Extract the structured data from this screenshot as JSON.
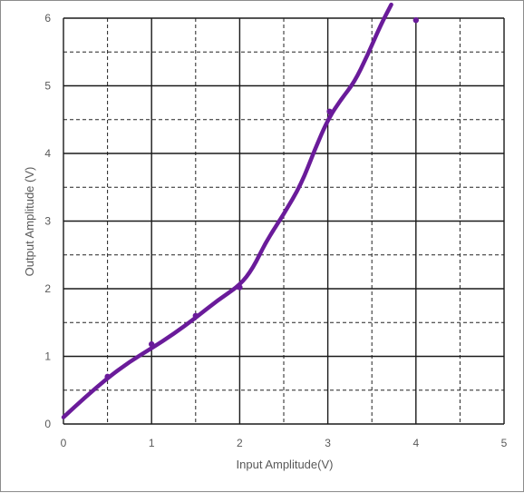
{
  "chart_data": {
    "type": "line",
    "title": "",
    "xlabel": "Input Amplitude(V)",
    "ylabel": "Output Amplitude (V)",
    "xlim": [
      0,
      5
    ],
    "ylim": [
      0,
      6
    ],
    "xticks": [
      "0",
      "1",
      "2",
      "3",
      "4",
      "5"
    ],
    "yticks": [
      "0",
      "1",
      "2",
      "3",
      "4",
      "5",
      "6"
    ],
    "major_grid": "solid",
    "minor_grid": "dashed",
    "line_color": "#6a1b9a",
    "series": [
      {
        "name": "",
        "x": [
          0.0,
          0.25,
          0.5,
          0.75,
          1.0,
          1.25,
          1.5,
          1.75,
          2.0,
          2.15,
          2.3,
          2.5,
          2.7,
          2.85,
          3.0,
          3.15,
          3.3,
          3.45,
          3.6,
          3.72
        ],
        "y": [
          0.1,
          0.4,
          0.68,
          0.92,
          1.12,
          1.33,
          1.57,
          1.83,
          2.05,
          2.3,
          2.7,
          3.1,
          3.55,
          4.05,
          4.5,
          4.8,
          5.05,
          5.45,
          5.9,
          6.2
        ]
      }
    ],
    "markers": [
      {
        "x": 0.5,
        "y": 0.7
      },
      {
        "x": 1.0,
        "y": 1.18
      },
      {
        "x": 1.5,
        "y": 1.6
      },
      {
        "x": 2.0,
        "y": 2.02
      },
      {
        "x": 3.02,
        "y": 4.62
      },
      {
        "x": 4.0,
        "y": 5.97
      }
    ]
  }
}
